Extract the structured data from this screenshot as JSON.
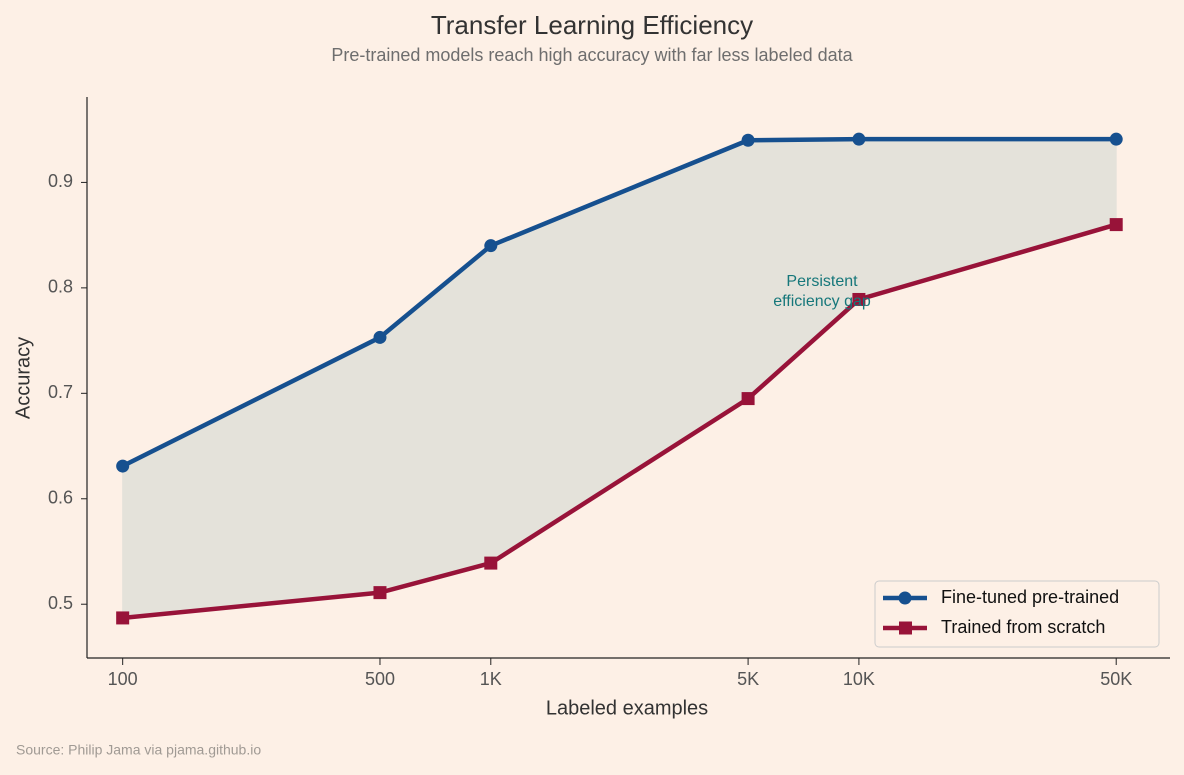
{
  "chart_data": {
    "type": "line",
    "title": "Transfer Learning Efficiency",
    "subtitle": "Pre-trained models reach high accuracy with far less labeled data",
    "x_label": "Labeled examples",
    "y_label": "Accuracy",
    "x": [
      100,
      500,
      1000,
      5000,
      10000,
      50000
    ],
    "x_scale": "log",
    "series": [
      {
        "name": "Fine-tuned pre-trained",
        "color": "#16508f",
        "marker": "circle",
        "values": [
          0.631,
          0.753,
          0.84,
          0.94,
          0.941,
          0.941
        ]
      },
      {
        "name": "Trained from scratch",
        "color": "#981339",
        "marker": "square",
        "values": [
          0.487,
          0.511,
          0.539,
          0.695,
          0.789,
          0.86
        ]
      }
    ],
    "fill_between_color": "#e4e2da",
    "xlim": [
      80,
      70000
    ],
    "ylim": [
      0.449,
      0.981
    ],
    "xticks": [
      100,
      500,
      {
        "value": 1000,
        "label": "1K"
      },
      {
        "value": 5000,
        "label": "5K"
      },
      {
        "value": 10000,
        "label": "10K"
      },
      {
        "value": 50000,
        "label": "50K"
      }
    ],
    "yticks": [
      0.5,
      0.6,
      0.7,
      0.8,
      0.9
    ],
    "annotation": [
      "Persistent",
      "efficiency gap"
    ],
    "legend": "lower right",
    "source": "Source: Philip Jama via pjama.github.io"
  }
}
